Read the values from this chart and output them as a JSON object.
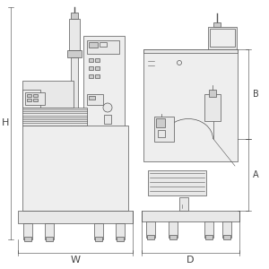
{
  "bg_color": "#ffffff",
  "line_color": "#555555",
  "line_color_dark": "#444444",
  "fill_light": "#e8e8e8",
  "fill_lighter": "#eeeeee",
  "fill_mid": "#cccccc",
  "fill_dark": "#aaaaaa",
  "figsize": [
    3.0,
    3.0
  ],
  "dpi": 100,
  "labels": {
    "H": "H",
    "W": "W",
    "D": "D",
    "B": "B",
    "A": "A"
  }
}
